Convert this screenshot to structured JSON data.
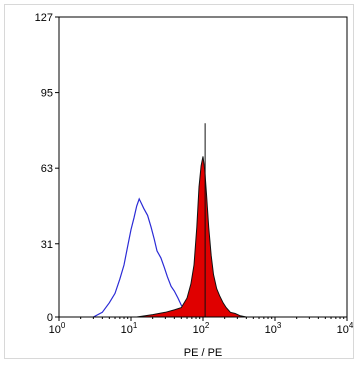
{
  "chart_data": {
    "type": "area",
    "title": "",
    "xlabel": "PE / PE",
    "ylabel": "",
    "x_scale": "log",
    "xlim": [
      1,
      10000
    ],
    "ylim": [
      0,
      127
    ],
    "y_ticks": [
      0,
      31,
      63,
      95,
      127
    ],
    "y_tick_labels": [
      "0",
      "31",
      "63",
      "95",
      "127"
    ],
    "x_ticks": [
      1,
      10,
      100,
      1000,
      10000
    ],
    "x_tick_labels": [
      {
        "base": "10",
        "exp": "0"
      },
      {
        "base": "10",
        "exp": "1"
      },
      {
        "base": "10",
        "exp": "2"
      },
      {
        "base": "10",
        "exp": "3"
      },
      {
        "base": "10",
        "exp": "4"
      }
    ],
    "grid": false,
    "legend": "none",
    "series": [
      {
        "style": "outline",
        "color": "#2b2bd6",
        "x": [
          3,
          4,
          5,
          6,
          7,
          8,
          9,
          10,
          11,
          12,
          13,
          14,
          15,
          17,
          19,
          21,
          23,
          26,
          29,
          32,
          36,
          40,
          45,
          50,
          56,
          63,
          70,
          80,
          90
        ],
        "y": [
          0,
          2,
          6,
          10,
          16,
          22,
          30,
          37,
          42,
          47,
          50,
          48,
          46,
          43,
          38,
          33,
          28,
          25,
          21,
          17,
          13,
          11,
          8,
          5,
          3,
          2,
          1,
          0.5,
          0
        ]
      },
      {
        "style": "filled",
        "color": "#e00000",
        "outline_color": "#111111",
        "x": [
          12,
          20,
          30,
          40,
          50,
          60,
          68,
          75,
          82,
          88,
          94,
          100,
          106,
          112,
          120,
          130,
          140,
          155,
          170,
          190,
          210,
          240,
          280,
          330,
          400
        ],
        "y": [
          0,
          1,
          2,
          3,
          4,
          8,
          14,
          22,
          38,
          55,
          64,
          68,
          62,
          52,
          38,
          26,
          18,
          12,
          9,
          6,
          4,
          2,
          1.5,
          0.5,
          0
        ]
      }
    ],
    "peak_marker": {
      "x": 107,
      "y": 82
    }
  }
}
